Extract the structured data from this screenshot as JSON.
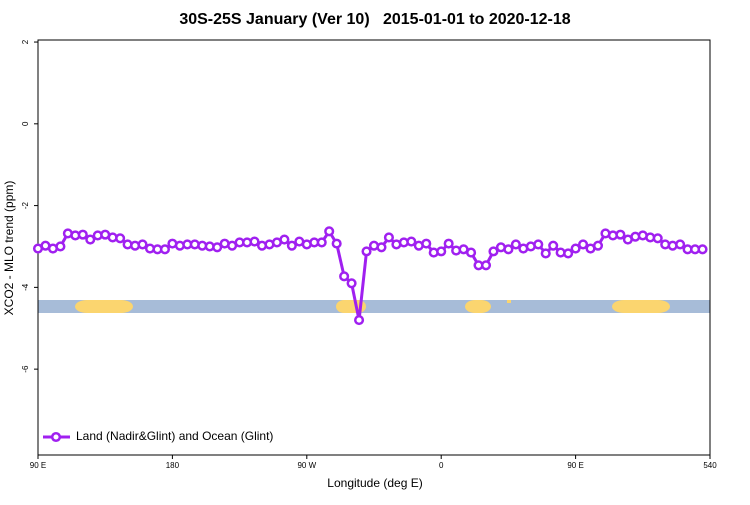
{
  "chart_data": {
    "type": "line",
    "title": "30S-25S January (Ver 10)   2015-01-01 to 2020-12-18",
    "x_label": "Longitude (deg E)",
    "y_label": "XCO2 - MLO trend (ppm)",
    "x": [
      90,
      95,
      100,
      105,
      110,
      115,
      120,
      125,
      130,
      135,
      140,
      145,
      150,
      155,
      160,
      165,
      170,
      175,
      180,
      185,
      190,
      195,
      200,
      205,
      210,
      215,
      220,
      225,
      230,
      235,
      240,
      245,
      250,
      255,
      260,
      265,
      270,
      275,
      280,
      285,
      290,
      295,
      300,
      305,
      310,
      315,
      320,
      325,
      330,
      335,
      340,
      345,
      350,
      355,
      360,
      365,
      370,
      375,
      380,
      385,
      390,
      395,
      400,
      405,
      410,
      415,
      420,
      425,
      430,
      435,
      440,
      445,
      450,
      455,
      460,
      465,
      470,
      475,
      480,
      485,
      490,
      495,
      500,
      505,
      510,
      515,
      520,
      525,
      530,
      535
    ],
    "series": [
      {
        "name": "Land (Nadir&Glint) and Ocean (Glint)",
        "color": "#a020f0",
        "values": [
          -3.05,
          -2.98,
          -3.05,
          -3.0,
          -2.68,
          -2.73,
          -2.71,
          -2.83,
          -2.73,
          -2.71,
          -2.78,
          -2.8,
          -2.95,
          -2.98,
          -2.95,
          -3.05,
          -3.07,
          -3.07,
          -2.93,
          -2.98,
          -2.95,
          -2.95,
          -2.98,
          -3.0,
          -3.02,
          -2.93,
          -2.98,
          -2.9,
          -2.9,
          -2.88,
          -2.98,
          -2.95,
          -2.9,
          -2.83,
          -2.98,
          -2.88,
          -2.95,
          -2.9,
          -2.9,
          -2.63,
          -2.93,
          -3.73,
          -3.9,
          -4.8,
          -3.12,
          -2.98,
          -3.02,
          -2.78,
          -2.95,
          -2.9,
          -2.88,
          -2.98,
          -2.93,
          -3.15,
          -3.12,
          -2.93,
          -3.1,
          -3.07,
          -3.15,
          -3.46,
          -3.46,
          -3.12,
          -3.02,
          -3.07,
          -2.95,
          -3.05,
          -3.0,
          -2.95,
          -3.17,
          -2.98,
          -3.15,
          -3.17,
          -3.05,
          -2.95,
          -3.05,
          -2.98,
          -2.68,
          -2.73,
          -2.71,
          -2.83,
          -2.76,
          -2.73,
          -2.78,
          -2.8,
          -2.95,
          -2.98,
          -2.95,
          -3.07,
          -3.07,
          -3.07
        ]
      }
    ],
    "xlim": [
      90,
      540
    ],
    "xticks": [
      {
        "value": 90,
        "label": "90 E"
      },
      180,
      {
        "value": 270,
        "label": "90 W"
      },
      {
        "value": 360,
        "label": "0"
      },
      {
        "value": 450,
        "label": "90 E"
      },
      540
    ],
    "ylim": [
      -8.1,
      2.05
    ],
    "yticks": [
      -6,
      -4,
      -2,
      0,
      2
    ],
    "legend": "bottom-left"
  }
}
